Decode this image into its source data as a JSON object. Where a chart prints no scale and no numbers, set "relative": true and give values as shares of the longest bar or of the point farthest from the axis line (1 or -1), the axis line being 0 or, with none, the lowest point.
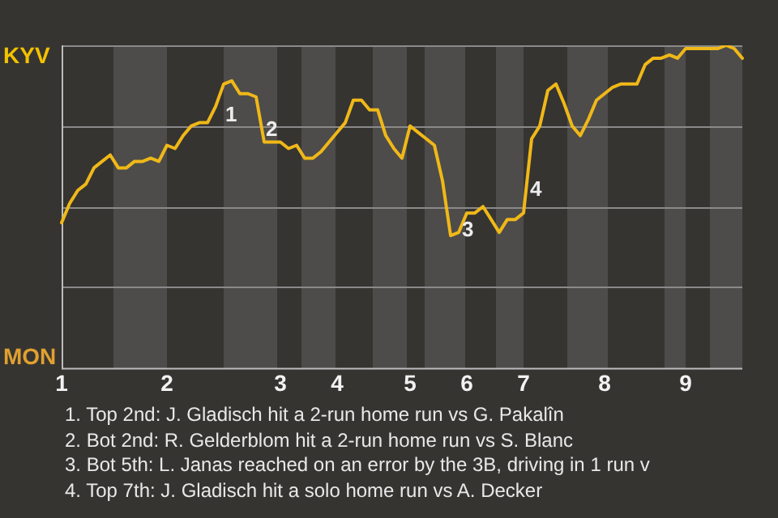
{
  "chart_data": {
    "type": "line",
    "categories": [
      "1",
      null,
      null,
      null,
      null,
      null,
      null,
      null,
      null,
      null,
      null,
      null,
      null,
      "2",
      null,
      null,
      null,
      null,
      null,
      null,
      null,
      null,
      null,
      null,
      null,
      null,
      null,
      "3",
      null,
      null,
      null,
      null,
      null,
      null,
      "4",
      null,
      null,
      null,
      null,
      null,
      null,
      null,
      null,
      "5",
      null,
      null,
      null,
      null,
      null,
      null,
      "6",
      null,
      null,
      null,
      null,
      null,
      null,
      "7",
      null,
      null,
      null,
      null,
      null,
      null,
      null,
      null,
      null,
      "8",
      null,
      null,
      null,
      null,
      null,
      null,
      null,
      null,
      null,
      "9",
      null,
      null,
      null,
      null,
      null,
      null,
      null
    ],
    "series": [
      {
        "color": "#f0b818",
        "values": [
          0.45,
          0.51,
          0.55,
          0.57,
          0.62,
          0.64,
          0.66,
          0.62,
          0.62,
          0.64,
          0.64,
          0.65,
          0.64,
          0.69,
          0.68,
          0.72,
          0.75,
          0.76,
          0.76,
          0.81,
          0.88,
          0.89,
          0.85,
          0.85,
          0.84,
          0.7,
          0.7,
          0.7,
          0.68,
          0.69,
          0.65,
          0.65,
          0.67,
          0.7,
          0.73,
          0.76,
          0.83,
          0.83,
          0.8,
          0.8,
          0.72,
          0.68,
          0.65,
          0.75,
          0.73,
          0.71,
          0.69,
          0.58,
          0.41,
          0.42,
          0.48,
          0.48,
          0.5,
          0.46,
          0.42,
          0.46,
          0.46,
          0.48,
          0.71,
          0.75,
          0.86,
          0.88,
          0.82,
          0.75,
          0.72,
          0.77,
          0.83,
          0.85,
          0.87,
          0.88,
          0.88,
          0.88,
          0.94,
          0.96,
          0.96,
          0.97,
          0.96,
          0.99,
          0.99,
          0.99,
          0.99,
          0.99,
          1,
          0.99,
          0.96
        ]
      }
    ],
    "relative": true,
    "grid": "y",
    "annotations": [
      "KYV",
      "MON",
      "1",
      "2",
      "3",
      "4",
      "1. Top 2nd: J. Gladisch hit a 2-run home run vs G. Pakalîn",
      "2. Bot 2nd: R. Gelderblom hit a 2-run home run vs S. Blanc",
      "3. Bot 5th: L. Janas reached on an error by the 3B, driving in 1 run v",
      "4. Top 7th: J. Gladisch hit a solo home run vs A. Decker"
    ],
    "marker": "none"
  }
}
